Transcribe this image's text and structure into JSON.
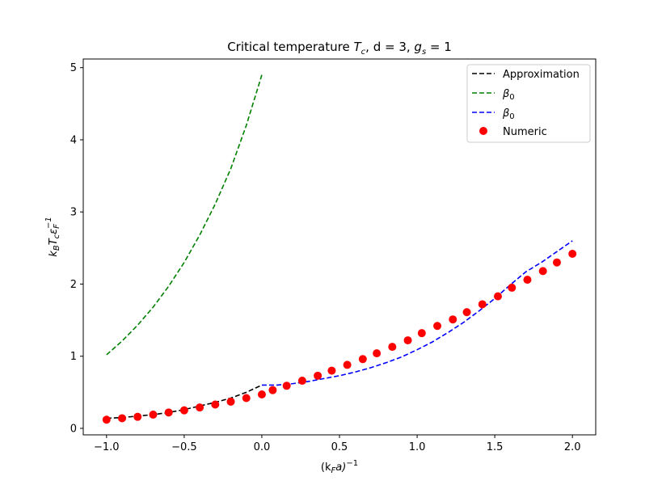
{
  "chart_data": {
    "type": "line",
    "title": {
      "prefix": "Critical temperature ",
      "tc_symbol": "T",
      "tc_sub": "c",
      "middle": ", d = 3, ",
      "gs_symbol": "g",
      "gs_sub": "s",
      "suffix": " = 1"
    },
    "xlabel": {
      "open": "(k",
      "sub": "F",
      "mid": "a)",
      "sup": "−1"
    },
    "ylabel": {
      "k": "k",
      "k_sub": "B",
      "T": "T",
      "T_sub": "c",
      "eps": "ε",
      "eps_sub": "F",
      "eps_sup": "−1"
    },
    "xlim": [
      -1.15,
      2.15
    ],
    "ylim": [
      -0.09,
      5.12
    ],
    "xticks": [
      -1.0,
      -0.5,
      0.0,
      0.5,
      1.0,
      1.5,
      2.0
    ],
    "xtick_labels": [
      "−1.0",
      "−0.5",
      "0.0",
      "0.5",
      "1.0",
      "1.5",
      "2.0"
    ],
    "yticks": [
      0,
      1,
      2,
      3,
      4,
      5
    ],
    "ytick_labels": [
      "0",
      "1",
      "2",
      "3",
      "4",
      "5"
    ],
    "grid": false,
    "legend_position": "top-right",
    "series": [
      {
        "name": "Approximation",
        "style": "dashed",
        "color": "#000000",
        "x": [
          -1.0,
          -0.9,
          -0.8,
          -0.7,
          -0.6,
          -0.5,
          -0.4,
          -0.3,
          -0.2,
          -0.1,
          0.0
        ],
        "y": [
          0.14,
          0.15,
          0.17,
          0.19,
          0.22,
          0.26,
          0.31,
          0.36,
          0.42,
          0.5,
          0.6
        ]
      },
      {
        "name": "β",
        "name_sub": "0",
        "style": "dashed",
        "color": "#008000",
        "x": [
          -1.0,
          -0.9,
          -0.8,
          -0.7,
          -0.6,
          -0.5,
          -0.4,
          -0.3,
          -0.2,
          -0.1,
          0.0
        ],
        "y": [
          1.02,
          1.21,
          1.43,
          1.68,
          1.97,
          2.3,
          2.68,
          3.11,
          3.6,
          4.2,
          4.9
        ]
      },
      {
        "name": "β",
        "name_sub": "0",
        "style": "dashed",
        "color": "#0000ff",
        "x": [
          0.0,
          0.1,
          0.2,
          0.3,
          0.4,
          0.5,
          0.6,
          0.7,
          0.8,
          0.9,
          1.0,
          1.1,
          1.2,
          1.3,
          1.4,
          1.5,
          1.6,
          1.7,
          1.8,
          1.9,
          2.0
        ],
        "y": [
          0.6,
          0.6,
          0.62,
          0.65,
          0.69,
          0.73,
          0.78,
          0.84,
          0.91,
          0.99,
          1.09,
          1.2,
          1.33,
          1.47,
          1.63,
          1.8,
          1.99,
          2.17,
          2.3,
          2.45,
          2.6
        ]
      },
      {
        "name": "Numeric",
        "style": "markers",
        "color": "#ff0000",
        "x": [
          -1.0,
          -0.9,
          -0.8,
          -0.7,
          -0.6,
          -0.5,
          -0.4,
          -0.3,
          -0.2,
          -0.1,
          0.0,
          0.07,
          0.16,
          0.26,
          0.36,
          0.45,
          0.55,
          0.65,
          0.74,
          0.84,
          0.94,
          1.03,
          1.13,
          1.23,
          1.32,
          1.42,
          1.52,
          1.61,
          1.71,
          1.81,
          1.9,
          2.0
        ],
        "y": [
          0.12,
          0.14,
          0.16,
          0.19,
          0.22,
          0.25,
          0.29,
          0.33,
          0.37,
          0.42,
          0.47,
          0.53,
          0.59,
          0.66,
          0.73,
          0.8,
          0.88,
          0.96,
          1.04,
          1.13,
          1.22,
          1.32,
          1.42,
          1.51,
          1.61,
          1.72,
          1.83,
          1.95,
          2.06,
          2.18,
          2.3,
          2.42
        ]
      }
    ]
  }
}
